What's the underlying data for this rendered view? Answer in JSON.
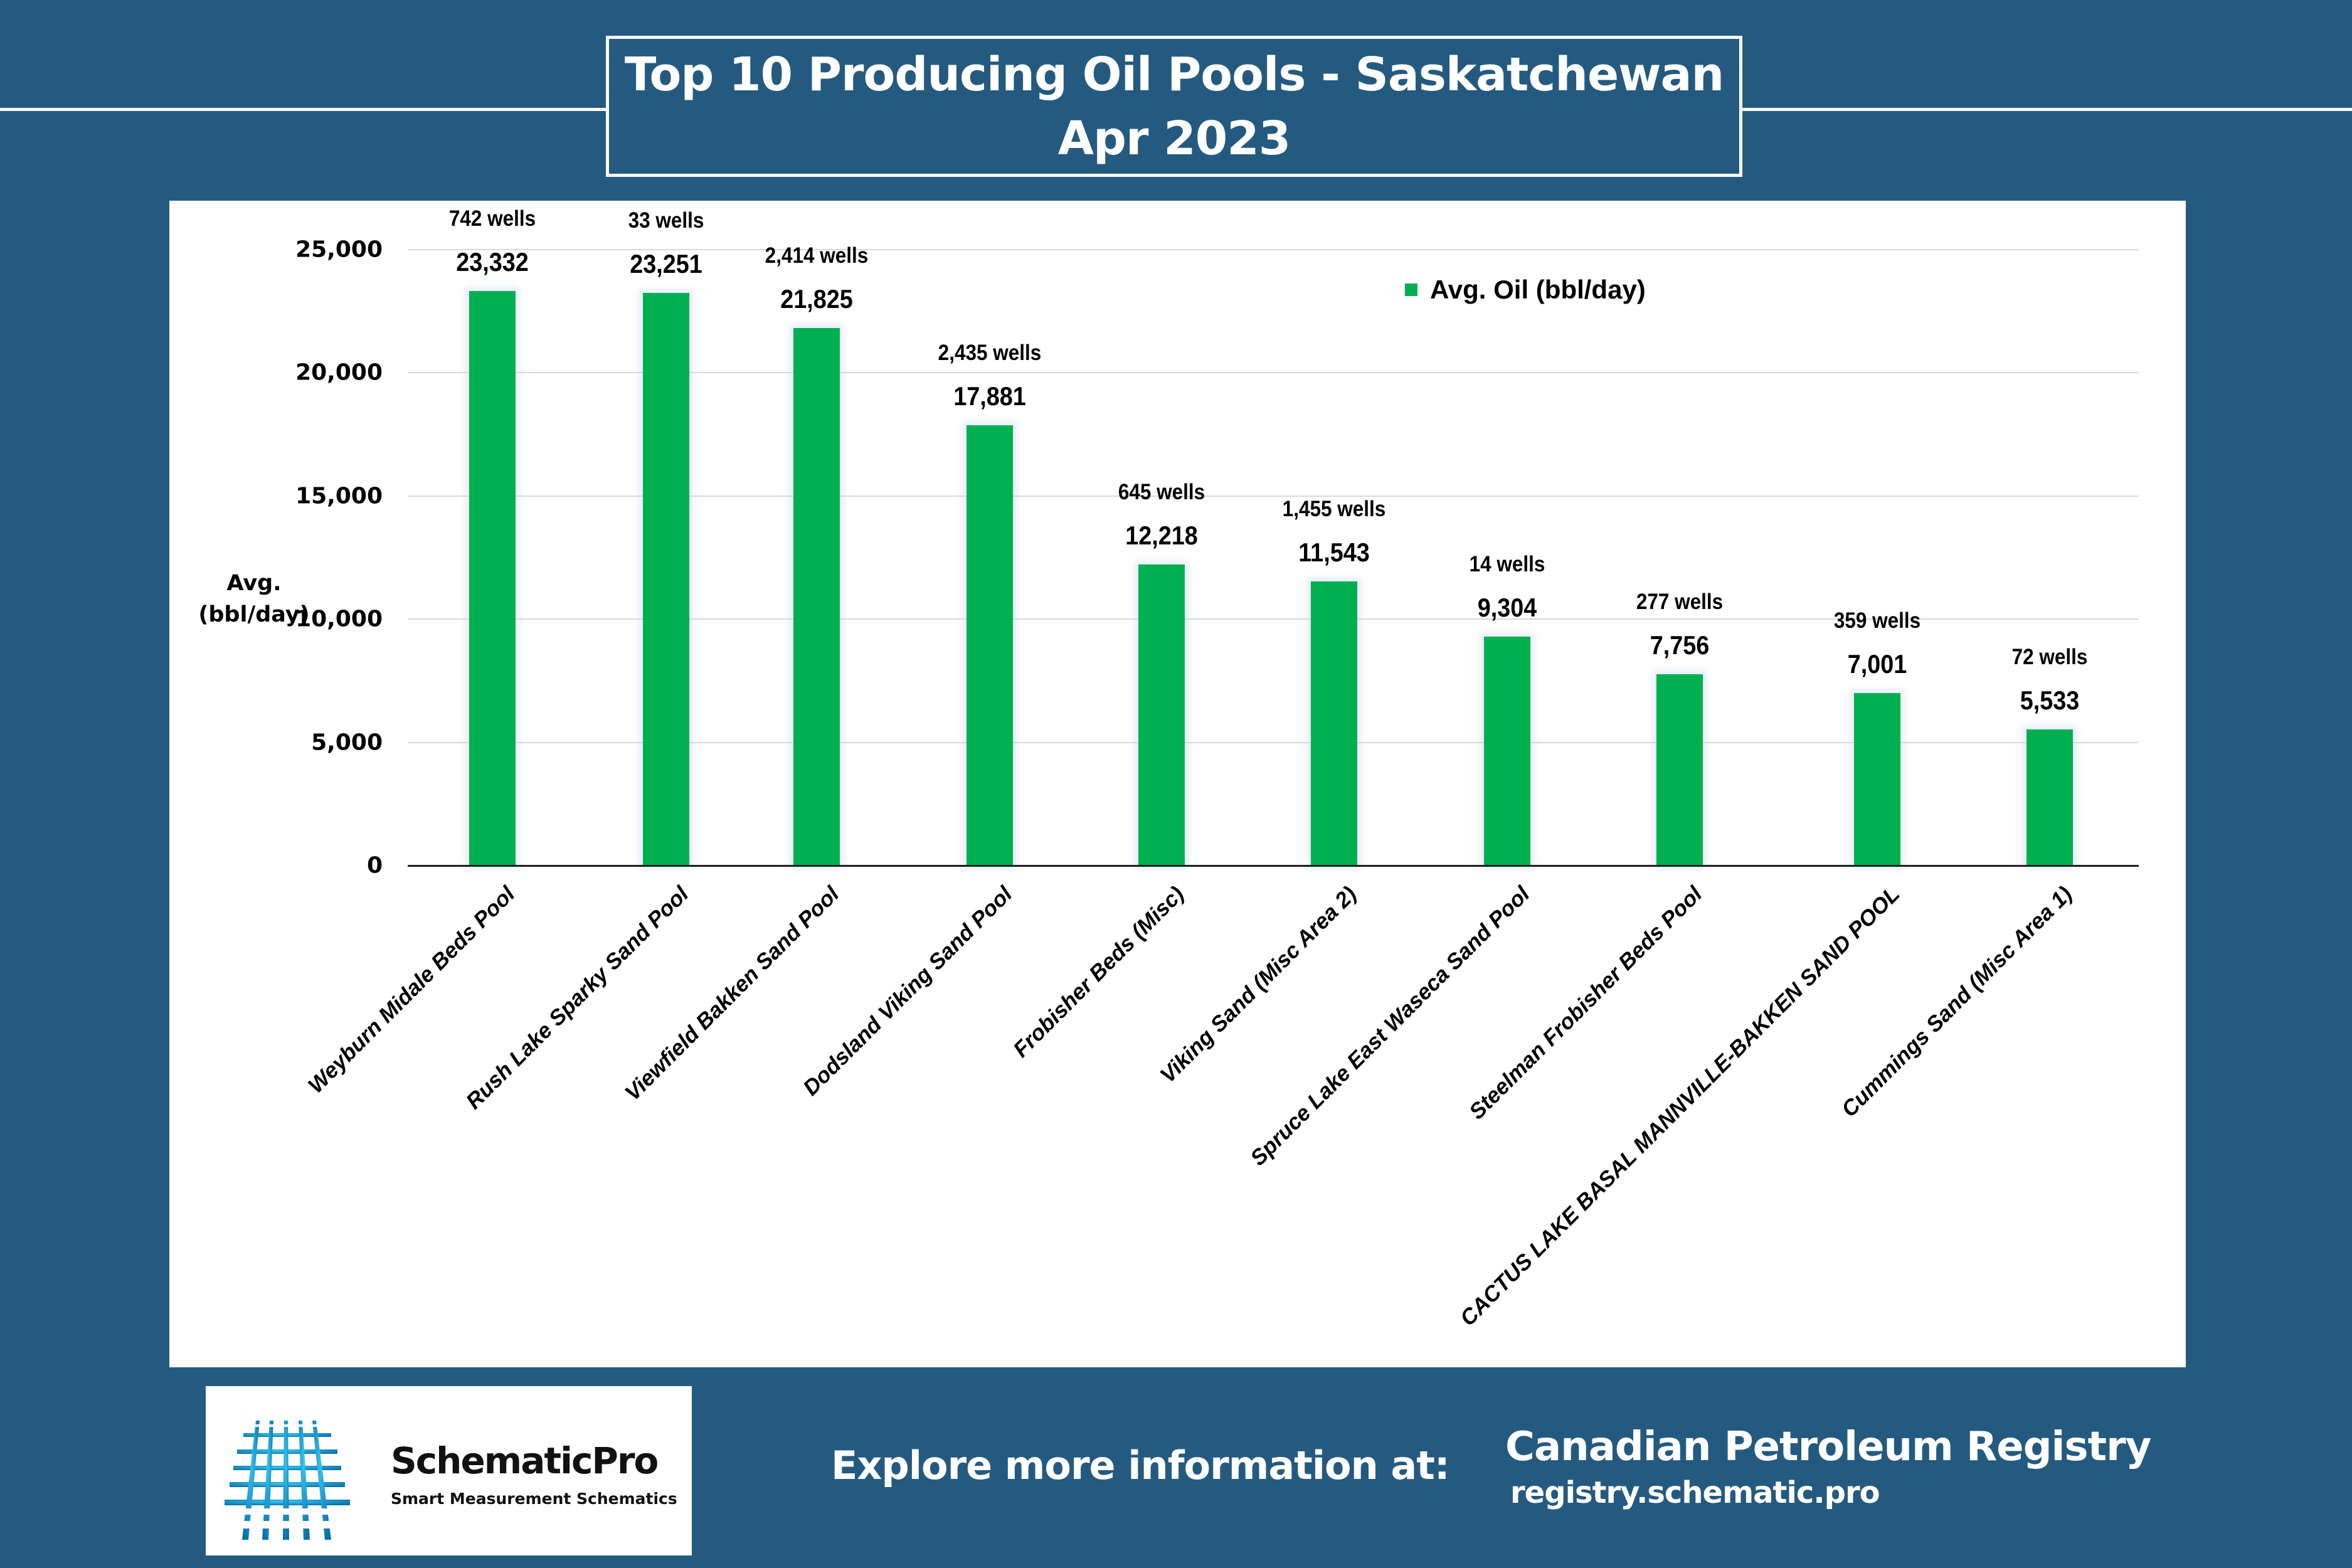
{
  "header": {
    "title_line1": "Top 10 Producing Oil Pools - Saskatchewan",
    "title_line2": "Apr 2023"
  },
  "colors": {
    "background": "#245a7f",
    "bar": "#00b050",
    "panel": "#ffffff",
    "logo_blue": "#1aa3dc"
  },
  "chart": {
    "ylabel_line1": "Avg.",
    "ylabel_line2": "(bbl/day)",
    "legend_label": "Avg. Oil (bbl/day)",
    "yticks": [
      "25,000",
      "20,000",
      "15,000",
      "10,000",
      "5,000",
      "0"
    ],
    "bars": [
      {
        "label": "Weyburn Midale Beds Pool",
        "value_text": "23,332",
        "wells": "742 wells"
      },
      {
        "label": "Rush Lake Sparky Sand Pool",
        "value_text": "23,251",
        "wells": "33 wells"
      },
      {
        "label": "Viewfield Bakken Sand Pool",
        "value_text": "21,825",
        "wells": "2,414 wells"
      },
      {
        "label": "Dodsland Viking Sand Pool",
        "value_text": "17,881",
        "wells": "2,435 wells"
      },
      {
        "label": "Frobisher Beds (Misc)",
        "value_text": "12,218",
        "wells": "645 wells"
      },
      {
        "label": "Viking Sand (Misc Area 2)",
        "value_text": "11,543",
        "wells": "1,455 wells"
      },
      {
        "label": "Spruce Lake East Waseca Sand Pool",
        "value_text": "9,304",
        "wells": "14 wells"
      },
      {
        "label": "Steelman Frobisher Beds Pool",
        "value_text": "7,756",
        "wells": "277 wells"
      },
      {
        "label": "CACTUS LAKE BASAL MANNVILLE-BAKKEN SAND POOL",
        "value_text": "7,001",
        "wells": "359 wells"
      },
      {
        "label": "Cummings Sand (Misc Area 1)",
        "value_text": "5,533",
        "wells": "72 wells"
      }
    ]
  },
  "chart_data": {
    "type": "bar",
    "title": "Top 10 Producing Oil Pools - Saskatchewan Apr 2023",
    "xlabel": "",
    "ylabel": "Avg. (bbl/day)",
    "ylim": [
      0,
      25000
    ],
    "yticks": [
      0,
      5000,
      10000,
      15000,
      20000,
      25000
    ],
    "grid": true,
    "legend_position": "top-right",
    "categories": [
      "Weyburn Midale Beds Pool",
      "Rush Lake Sparky Sand Pool",
      "Viewfield Bakken Sand Pool",
      "Dodsland Viking Sand Pool",
      "Frobisher Beds (Misc)",
      "Viking Sand (Misc Area 2)",
      "Spruce Lake East Waseca Sand Pool",
      "Steelman Frobisher Beds Pool",
      "CACTUS LAKE BASAL MANNVILLE-BAKKEN SAND POOL",
      "Cummings Sand (Misc Area 1)"
    ],
    "series": [
      {
        "name": "Avg. Oil (bbl/day)",
        "values": [
          23332,
          23251,
          21825,
          17881,
          12218,
          11543,
          9304,
          7756,
          7001,
          5533
        ]
      }
    ],
    "annotations": {
      "well_counts": [
        742,
        33,
        2414,
        2435,
        645,
        1455,
        14,
        277,
        359,
        72
      ]
    }
  },
  "footer": {
    "logo_name": "SchematicPro",
    "logo_tagline": "Smart Measurement Schematics",
    "explore_text": "Explore more information at:",
    "registry_name": "Canadian Petroleum Registry",
    "registry_url": "registry.schematic.pro"
  }
}
